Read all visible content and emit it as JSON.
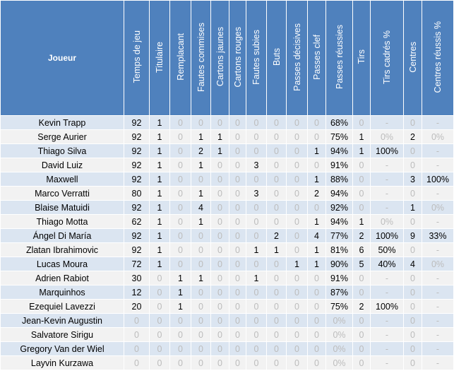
{
  "header": {
    "player": "Joueur",
    "columns": [
      "Temps de jeu",
      "Titulaire",
      "Remplacant",
      "Fautes commises",
      "Cartons jaunes",
      "Cartons rouges",
      "Fautes subies",
      "Buts",
      "Passes décisives",
      "Passes clef",
      "Passes réussies",
      "Tirs",
      "Tirs cadrés %",
      "Centres",
      "Centres réussis %"
    ]
  },
  "rows": [
    {
      "name": "Kevin Trapp",
      "cells": [
        "92",
        "1",
        "0",
        "0",
        "0",
        "0",
        "0",
        "0",
        "0",
        "0",
        "68%",
        "0",
        "-",
        "0",
        "-"
      ]
    },
    {
      "name": "Serge Aurier",
      "cells": [
        "92",
        "1",
        "0",
        "1",
        "1",
        "0",
        "0",
        "0",
        "0",
        "0",
        "75%",
        "1",
        "0%",
        "2",
        "0%"
      ]
    },
    {
      "name": "Thiago Silva",
      "cells": [
        "92",
        "1",
        "0",
        "2",
        "1",
        "0",
        "0",
        "0",
        "0",
        "1",
        "94%",
        "1",
        "100%",
        "0",
        "-"
      ]
    },
    {
      "name": "David Luiz",
      "cells": [
        "92",
        "1",
        "0",
        "1",
        "0",
        "0",
        "3",
        "0",
        "0",
        "0",
        "91%",
        "0",
        "-",
        "0",
        "-"
      ]
    },
    {
      "name": "Maxwell",
      "cells": [
        "92",
        "1",
        "0",
        "0",
        "0",
        "0",
        "0",
        "0",
        "0",
        "1",
        "88%",
        "0",
        "-",
        "3",
        "100%"
      ]
    },
    {
      "name": "Marco Verratti",
      "cells": [
        "80",
        "1",
        "0",
        "1",
        "0",
        "0",
        "3",
        "0",
        "0",
        "2",
        "94%",
        "0",
        "-",
        "0",
        "-"
      ]
    },
    {
      "name": "Blaise Matuidi",
      "cells": [
        "92",
        "1",
        "0",
        "4",
        "0",
        "0",
        "0",
        "0",
        "0",
        "0",
        "92%",
        "0",
        "-",
        "1",
        "0%"
      ]
    },
    {
      "name": "Thiago Motta",
      "cells": [
        "62",
        "1",
        "0",
        "1",
        "0",
        "0",
        "0",
        "0",
        "0",
        "1",
        "94%",
        "1",
        "0%",
        "0",
        "-"
      ]
    },
    {
      "name": "Ángel Di María",
      "cells": [
        "92",
        "1",
        "0",
        "0",
        "0",
        "0",
        "0",
        "2",
        "0",
        "4",
        "77%",
        "2",
        "100%",
        "9",
        "33%"
      ]
    },
    {
      "name": "Zlatan Ibrahimovic",
      "cells": [
        "92",
        "1",
        "0",
        "0",
        "0",
        "0",
        "1",
        "1",
        "0",
        "1",
        "81%",
        "6",
        "50%",
        "0",
        "-"
      ]
    },
    {
      "name": "Lucas Moura",
      "cells": [
        "72",
        "1",
        "0",
        "0",
        "0",
        "0",
        "0",
        "0",
        "1",
        "1",
        "90%",
        "5",
        "40%",
        "4",
        "0%"
      ]
    },
    {
      "name": "Adrien Rabiot",
      "cells": [
        "30",
        "0",
        "1",
        "1",
        "0",
        "0",
        "1",
        "0",
        "0",
        "0",
        "91%",
        "0",
        "-",
        "0",
        "-"
      ]
    },
    {
      "name": "Marquinhos",
      "cells": [
        "12",
        "0",
        "1",
        "0",
        "0",
        "0",
        "0",
        "0",
        "0",
        "0",
        "87%",
        "0",
        "-",
        "0",
        "-"
      ]
    },
    {
      "name": "Ezequiel Lavezzi",
      "cells": [
        "20",
        "0",
        "1",
        "0",
        "0",
        "0",
        "0",
        "0",
        "0",
        "0",
        "75%",
        "2",
        "100%",
        "0",
        "-"
      ]
    },
    {
      "name": "Jean-Kevin Augustin",
      "cells": [
        "0",
        "0",
        "0",
        "0",
        "0",
        "0",
        "0",
        "0",
        "0",
        "0",
        "0%",
        "0",
        "-",
        "0",
        "-"
      ]
    },
    {
      "name": "Salvatore Sirigu",
      "cells": [
        "0",
        "0",
        "0",
        "0",
        "0",
        "0",
        "0",
        "0",
        "0",
        "0",
        "0%",
        "0",
        "-",
        "0",
        "-"
      ]
    },
    {
      "name": "Gregory Van der Wiel",
      "cells": [
        "0",
        "0",
        "0",
        "0",
        "0",
        "0",
        "0",
        "0",
        "0",
        "0",
        "0%",
        "0",
        "-",
        "0",
        "-"
      ]
    },
    {
      "name": "Layvin Kurzawa",
      "cells": [
        "0",
        "0",
        "0",
        "0",
        "0",
        "0",
        "0",
        "0",
        "0",
        "0",
        "0%",
        "0",
        "-",
        "0",
        "-"
      ]
    }
  ]
}
